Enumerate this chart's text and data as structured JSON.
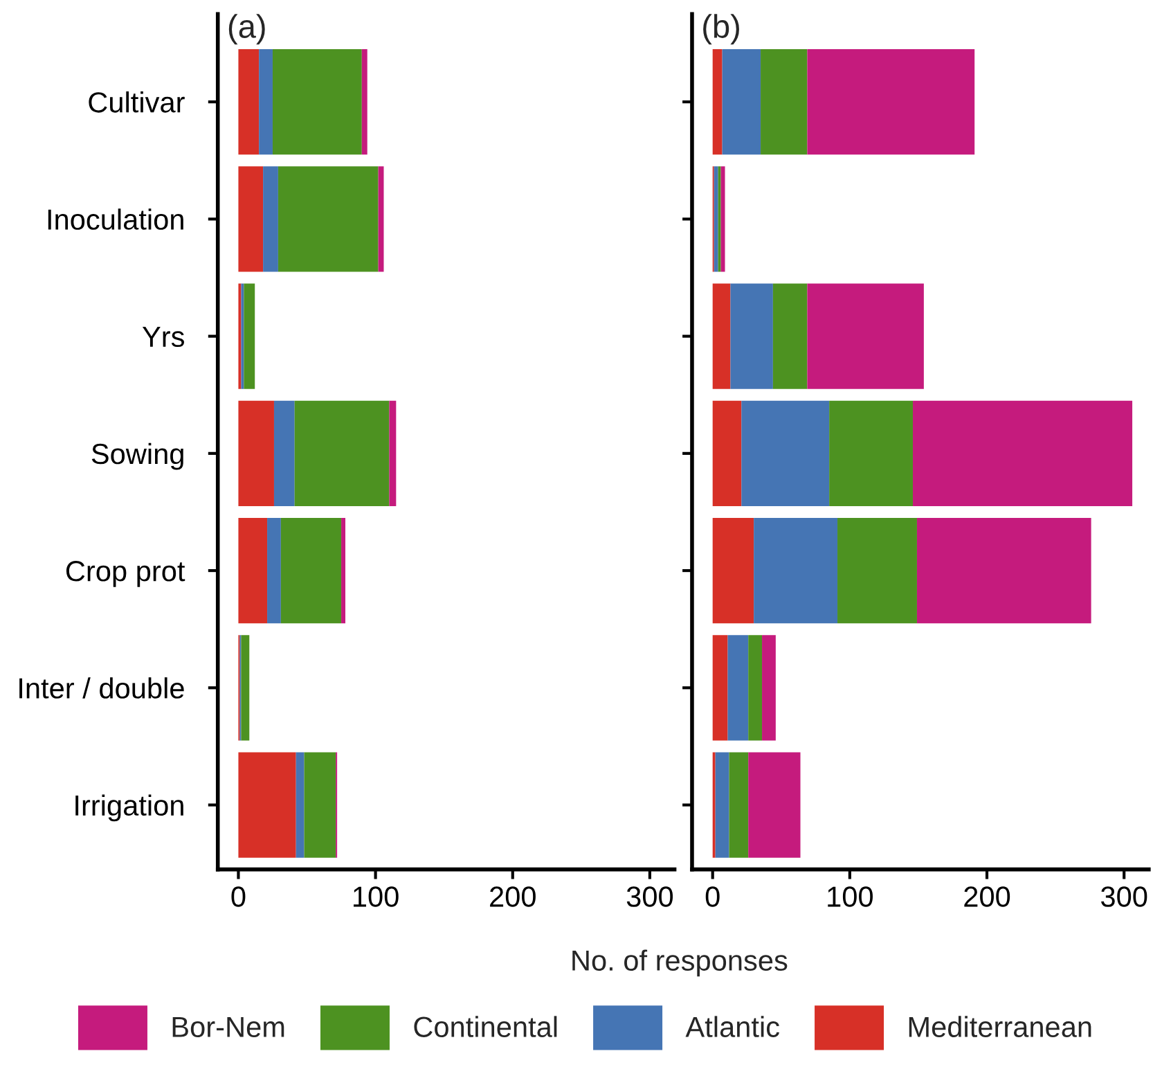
{
  "chart_data": [
    {
      "type": "bar",
      "title": "(a)",
      "orientation": "horizontal",
      "stacked": true,
      "xlabel": "No. of responses",
      "legend": "bottom",
      "categories": [
        "Cultivar",
        "Inoculation",
        "Yrs",
        "Sowing",
        "Crop prot",
        "Inter / double",
        "Irrigation"
      ],
      "xlim": [
        -15,
        318
      ],
      "xticks": [
        0,
        100,
        200,
        300
      ],
      "series": [
        {
          "name": "Mediterranean",
          "color": "#d73027",
          "values": [
            15,
            18,
            2,
            26,
            21,
            1,
            42
          ]
        },
        {
          "name": "Atlantic",
          "color": "#4575b4",
          "values": [
            10,
            11,
            2,
            15,
            10,
            1,
            6
          ]
        },
        {
          "name": "Continental",
          "color": "#4d9221",
          "values": [
            65,
            73,
            8,
            69,
            44,
            6,
            23
          ]
        },
        {
          "name": "Bor-Nem",
          "color": "#c51b7d",
          "values": [
            4,
            4,
            0,
            5,
            3,
            0,
            1
          ]
        }
      ]
    },
    {
      "type": "bar",
      "title": "(b)",
      "orientation": "horizontal",
      "stacked": true,
      "tick_labels": "x",
      "categories": [
        null,
        null,
        null,
        null,
        null,
        null,
        null
      ],
      "xlim": [
        -15,
        318
      ],
      "xticks": [
        0,
        100,
        200,
        300
      ],
      "series": [
        {
          "color": "#d73027",
          "values": [
            7,
            1,
            13,
            21,
            30,
            11,
            2
          ]
        },
        {
          "color": "#4575b4",
          "values": [
            28,
            3,
            31,
            64,
            61,
            15,
            10
          ]
        },
        {
          "color": "#4d9221",
          "values": [
            34,
            2,
            25,
            61,
            58,
            10,
            14
          ]
        },
        {
          "color": "#c51b7d",
          "values": [
            122,
            3,
            85,
            160,
            127,
            10,
            38
          ]
        }
      ]
    }
  ]
}
